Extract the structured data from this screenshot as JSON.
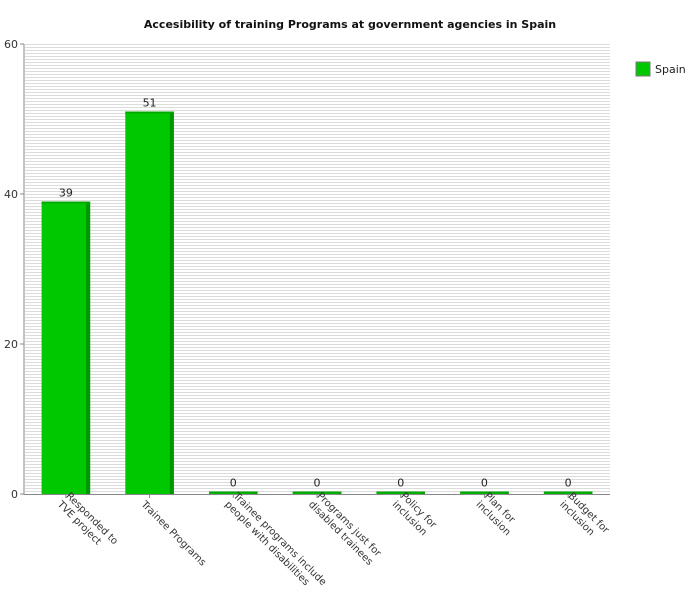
{
  "chart_data": {
    "type": "bar",
    "title": "Accesibility of training Programs at government agencies in Spain",
    "xlabel": "",
    "ylabel": "",
    "categories": [
      [
        "Responded to",
        "TVE project"
      ],
      [
        "Trainee Programs"
      ],
      [
        "Trainee programs include",
        "people with disabilities"
      ],
      [
        "Programs just for",
        "disabled trainees"
      ],
      [
        "Policy for",
        "inclusion"
      ],
      [
        "Plan for",
        "inclusion"
      ],
      [
        "Budget for",
        "inclusion"
      ]
    ],
    "series": [
      {
        "name": "Spain",
        "values": [
          39,
          51,
          0,
          0,
          0,
          0,
          0
        ]
      }
    ],
    "ylim": [
      0,
      60
    ],
    "yticks": [
      0,
      20,
      40,
      60
    ],
    "grid": true,
    "legend": "top-right",
    "colors": {
      "bar": "#00c800",
      "bar_side": "#009600",
      "bar_top": "#00a800",
      "grid": "#dcdcdc"
    }
  }
}
